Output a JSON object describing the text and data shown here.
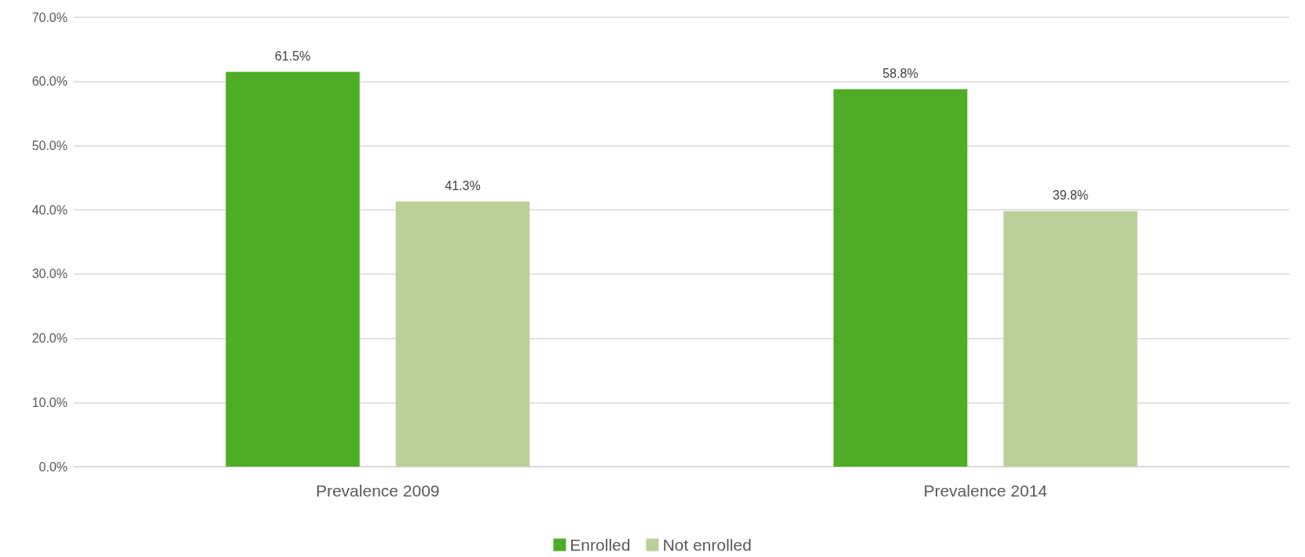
{
  "chart_data": {
    "type": "bar",
    "categories": [
      "Prevalence 2009",
      "Prevalence 2014"
    ],
    "series": [
      {
        "name": "Enrolled",
        "color": "#4eac26",
        "values": [
          61.5,
          58.8
        ],
        "value_labels": [
          "61.5%",
          "58.8%"
        ]
      },
      {
        "name": "Not enrolled",
        "color": "#bbcf99",
        "values": [
          41.3,
          39.8
        ],
        "value_labels": [
          "41.3%",
          "39.8%"
        ]
      }
    ],
    "ylim": [
      0,
      70
    ],
    "yticks": [
      {
        "value": 0,
        "label": "0.0%"
      },
      {
        "value": 10,
        "label": "10.0%"
      },
      {
        "value": 20,
        "label": "20.0%"
      },
      {
        "value": 30,
        "label": "30.0%"
      },
      {
        "value": 40,
        "label": "40.0%"
      },
      {
        "value": 50,
        "label": "50.0%"
      },
      {
        "value": 60,
        "label": "60.0%"
      },
      {
        "value": 70,
        "label": "70.0%"
      }
    ],
    "grid": "y",
    "legend": "bottom"
  }
}
